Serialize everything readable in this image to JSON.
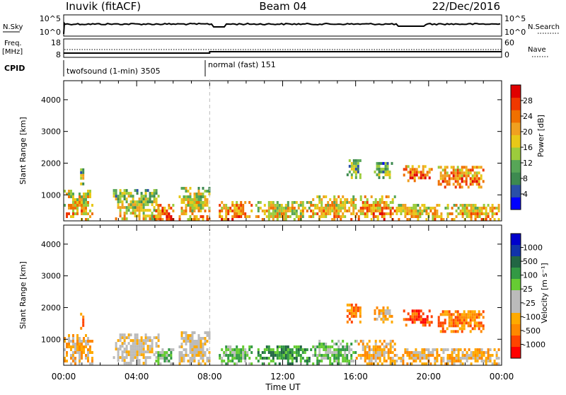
{
  "header": {
    "title_left": "Inuvik (fitACF)",
    "title_center": "Beam 04",
    "title_right": "22/Dec/2016"
  },
  "panels": {
    "nsky": {
      "label": "N.Sky",
      "right_label": "N.Search",
      "ticks_left": [
        "10^5",
        "10^0"
      ],
      "ticks_right": [
        "10^5",
        "10^0"
      ]
    },
    "freq": {
      "label": "Freq.",
      "unit": "[MHz]",
      "ticks_left": [
        "18",
        "8"
      ],
      "right_label": "Nave",
      "ticks_right": [
        "60",
        "0"
      ]
    },
    "cpid": {
      "label": "CPID",
      "segments": [
        {
          "label": "twofsound (1-min) 3505",
          "start_hour": 0
        },
        {
          "label": "normal (fast) 151",
          "start_hour": 8.0
        }
      ]
    }
  },
  "colors": {
    "power": [
      "#0000ff",
      "#2a4fa8",
      "#3d8a50",
      "#57a657",
      "#9ccc3c",
      "#e8c818",
      "#f0a020",
      "#f07000",
      "#f03800",
      "#e00000"
    ],
    "velocity": [
      "#ff0000",
      "#ff4400",
      "#ff8800",
      "#ffaa00",
      "#bbbbbb",
      "#bbbbbb",
      "#66cc33",
      "#339944",
      "#226644",
      "#1133aa",
      "#0000cc"
    ]
  },
  "chart_data": [
    {
      "type": "heatmap",
      "name": "Power",
      "ylabel": "Slant Range [km]",
      "ylim": [
        180,
        4600
      ],
      "yticks": [
        "1000",
        "2000",
        "3000",
        "4000"
      ],
      "xlim": [
        0,
        24
      ],
      "xticks": [
        "00:00",
        "04:00",
        "08:00",
        "12:00",
        "16:00",
        "20:00",
        "00:00"
      ],
      "colorbar": {
        "label": "Power [dB]",
        "ticks": [
          "4",
          "8",
          "12",
          "16",
          "20",
          "24",
          "28"
        ],
        "range": [
          0,
          32
        ]
      },
      "blobs": [
        {
          "t0": 0.0,
          "t1": 1.6,
          "r0": 180,
          "r1": 1100,
          "level": 22
        },
        {
          "t0": 0.9,
          "t1": 1.1,
          "r0": 1300,
          "r1": 1800,
          "level": 16
        },
        {
          "t0": 2.7,
          "t1": 5.2,
          "r0": 200,
          "r1": 1100,
          "level": 18
        },
        {
          "t0": 4.9,
          "t1": 6.0,
          "r0": 180,
          "r1": 700,
          "level": 26
        },
        {
          "t0": 6.3,
          "t1": 8.0,
          "r0": 180,
          "r1": 1200,
          "level": 20
        },
        {
          "t0": 8.5,
          "t1": 10.3,
          "r0": 180,
          "r1": 800,
          "level": 25
        },
        {
          "t0": 10.5,
          "t1": 13.5,
          "r0": 180,
          "r1": 800,
          "level": 20
        },
        {
          "t0": 13.5,
          "t1": 16.0,
          "r0": 180,
          "r1": 900,
          "level": 22
        },
        {
          "t0": 15.5,
          "t1": 16.3,
          "r0": 1500,
          "r1": 2100,
          "level": 14
        },
        {
          "t0": 16.0,
          "t1": 18.2,
          "r0": 180,
          "r1": 900,
          "level": 24
        },
        {
          "t0": 17.0,
          "t1": 18.0,
          "r0": 1500,
          "r1": 2000,
          "level": 12
        },
        {
          "t0": 18.6,
          "t1": 20.2,
          "r0": 1400,
          "r1": 1900,
          "level": 26
        },
        {
          "t0": 18.2,
          "t1": 21.0,
          "r0": 180,
          "r1": 700,
          "level": 20
        },
        {
          "t0": 20.5,
          "t1": 23.0,
          "r0": 1200,
          "r1": 1900,
          "level": 25
        },
        {
          "t0": 21.0,
          "t1": 24.0,
          "r0": 180,
          "r1": 700,
          "level": 22
        }
      ]
    },
    {
      "type": "heatmap",
      "name": "Velocity",
      "ylabel": "Slant Range [km]",
      "ylim": [
        180,
        4600
      ],
      "yticks": [
        "1000",
        "2000",
        "3000",
        "4000"
      ],
      "xlim": [
        0,
        24
      ],
      "xlabel": "Time UT",
      "xticks": [
        "00:00",
        "04:00",
        "08:00",
        "12:00",
        "16:00",
        "20:00",
        "00:00"
      ],
      "colorbar": {
        "label": "Velocity [m s⁻¹]",
        "ticks": [
          "1000",
          "500",
          "100",
          "25",
          "-25",
          "-100",
          "-500",
          "-1000"
        ]
      },
      "blobs": [
        {
          "t0": 0.0,
          "t1": 1.6,
          "r0": 180,
          "r1": 1100,
          "vclass": 3
        },
        {
          "t0": 0.9,
          "t1": 1.1,
          "r0": 1300,
          "r1": 1800,
          "vclass": 2
        },
        {
          "t0": 2.7,
          "t1": 5.2,
          "r0": 200,
          "r1": 1100,
          "vclass": 4
        },
        {
          "t0": 4.9,
          "t1": 6.0,
          "r0": 180,
          "r1": 700,
          "vclass": 6
        },
        {
          "t0": 6.3,
          "t1": 8.0,
          "r0": 180,
          "r1": 1200,
          "vclass": 4
        },
        {
          "t0": 8.5,
          "t1": 10.3,
          "r0": 180,
          "r1": 800,
          "vclass": 6
        },
        {
          "t0": 10.5,
          "t1": 13.5,
          "r0": 180,
          "r1": 800,
          "vclass": 7
        },
        {
          "t0": 13.5,
          "t1": 16.0,
          "r0": 180,
          "r1": 900,
          "vclass": 6
        },
        {
          "t0": 15.5,
          "t1": 16.3,
          "r0": 1500,
          "r1": 2100,
          "vclass": 2
        },
        {
          "t0": 16.0,
          "t1": 18.2,
          "r0": 180,
          "r1": 900,
          "vclass": 3
        },
        {
          "t0": 17.0,
          "t1": 18.0,
          "r0": 1500,
          "r1": 2000,
          "vclass": 3
        },
        {
          "t0": 18.6,
          "t1": 20.2,
          "r0": 1400,
          "r1": 1900,
          "vclass": 1
        },
        {
          "t0": 18.2,
          "t1": 21.0,
          "r0": 180,
          "r1": 700,
          "vclass": 3
        },
        {
          "t0": 20.5,
          "t1": 23.0,
          "r0": 1200,
          "r1": 1900,
          "vclass": 2
        },
        {
          "t0": 21.0,
          "t1": 24.0,
          "r0": 180,
          "r1": 700,
          "vclass": 3
        }
      ]
    }
  ]
}
